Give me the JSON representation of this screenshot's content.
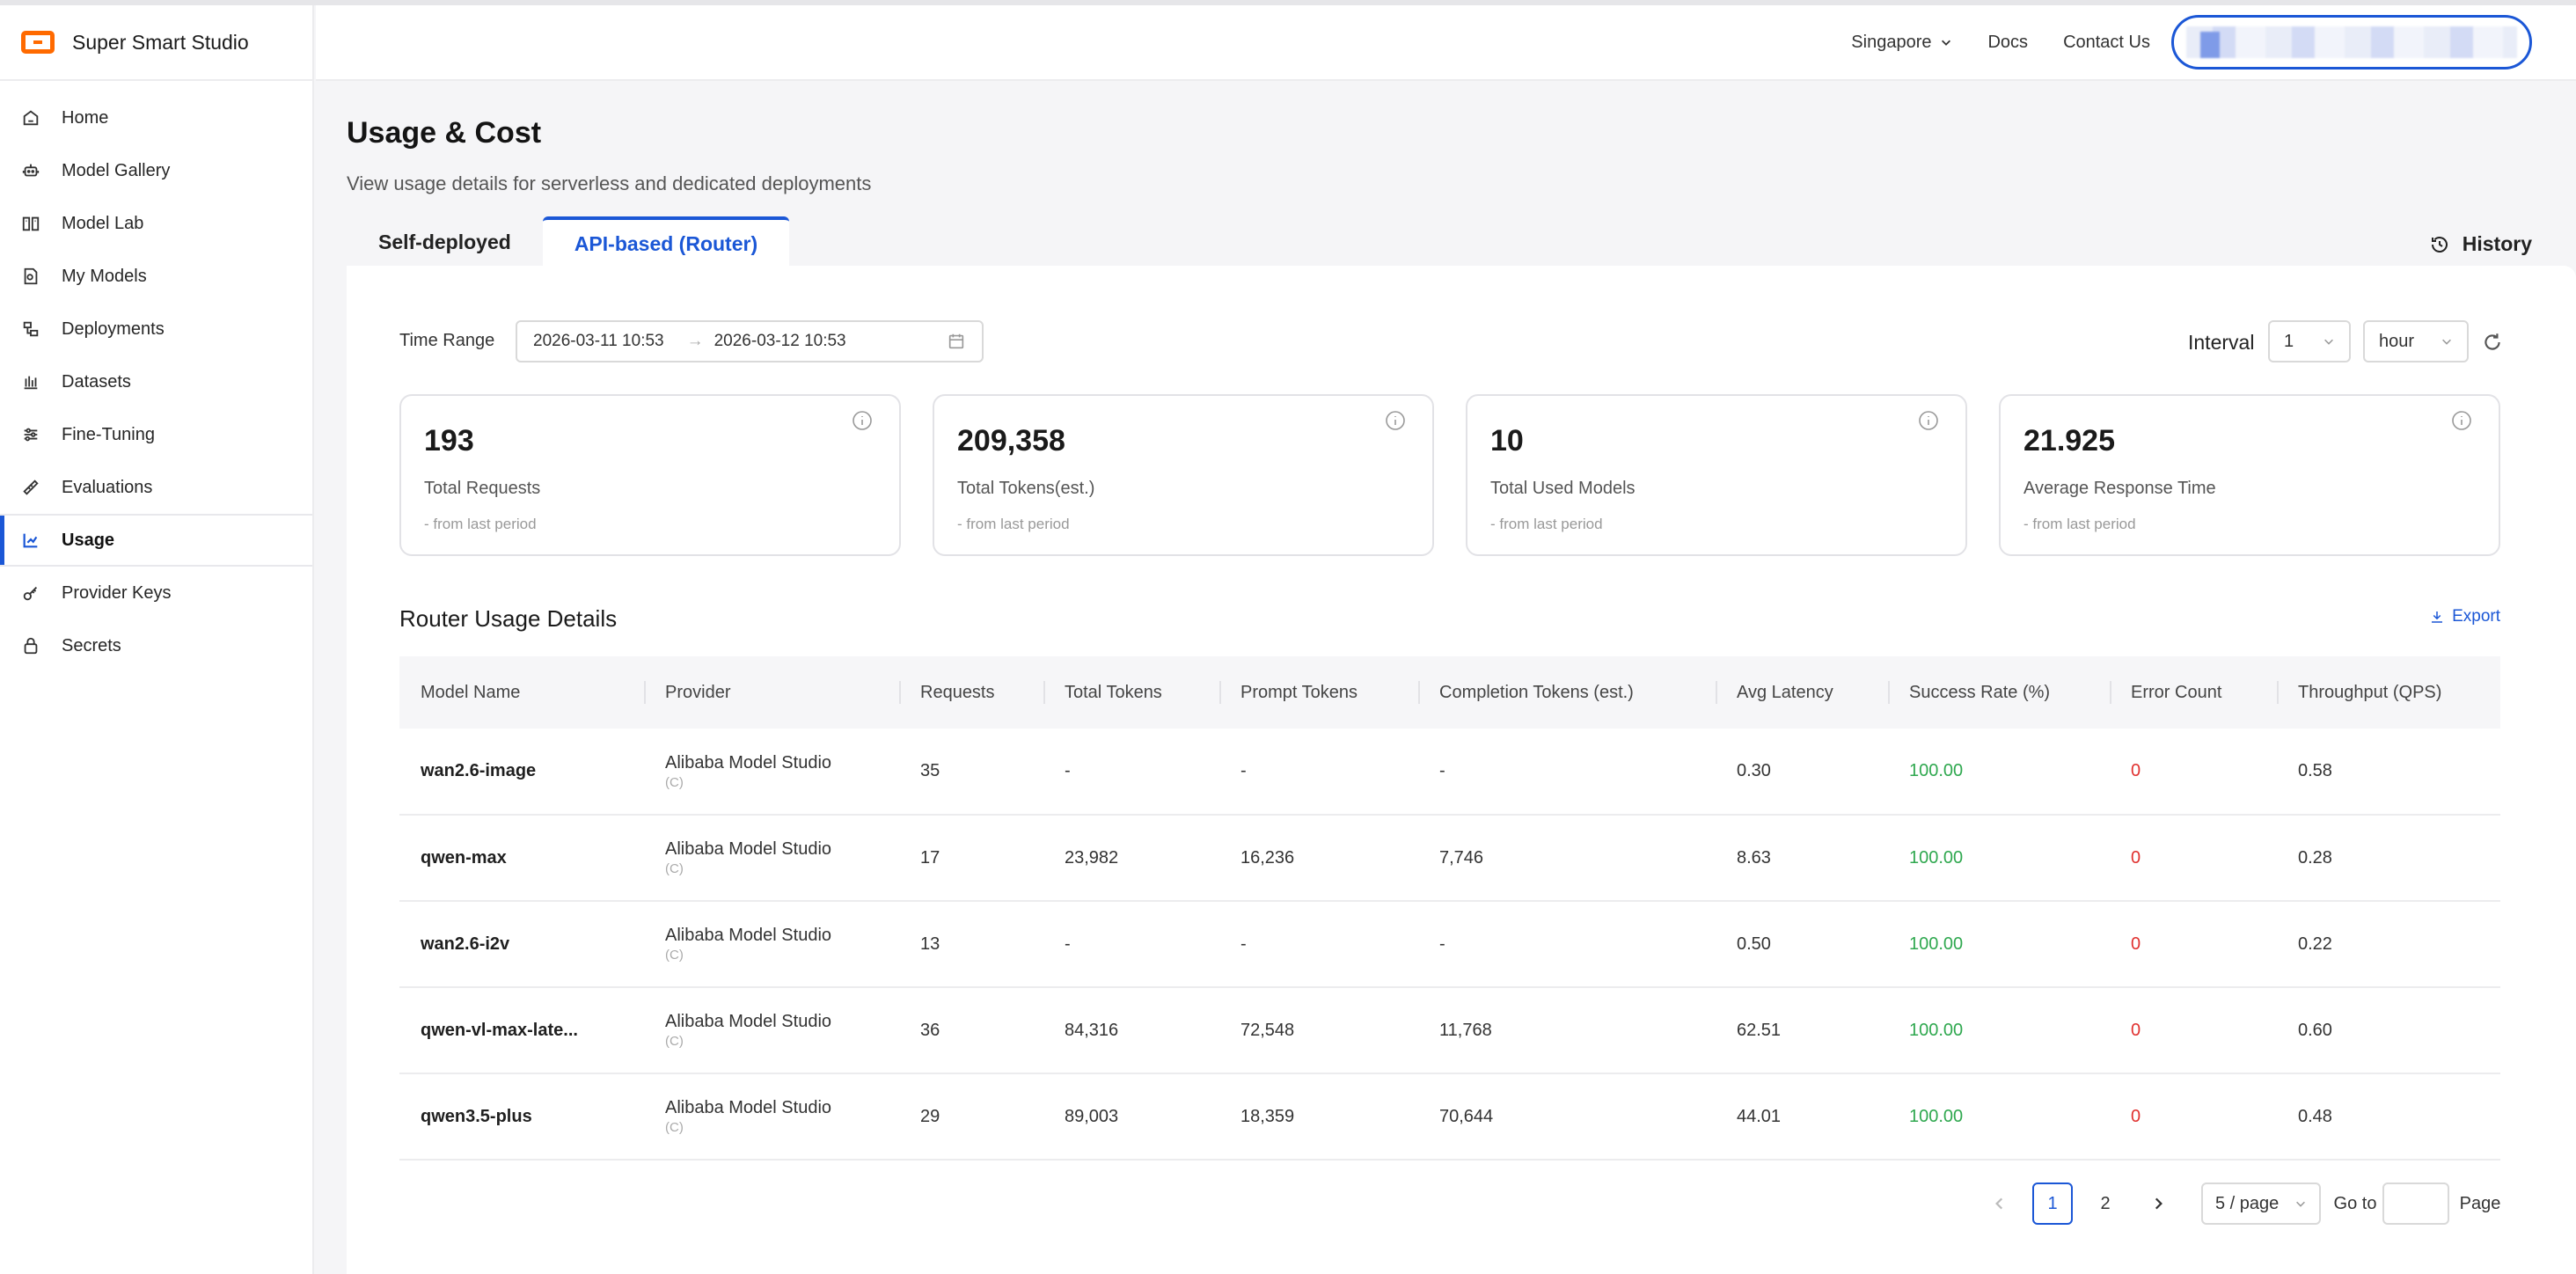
{
  "brand": {
    "name": "Super Smart Studio",
    "logo_color": "#ff6a00"
  },
  "sidebar": {
    "items": [
      {
        "label": "Home",
        "icon": "home-icon"
      },
      {
        "label": "Model Gallery",
        "icon": "robot-icon"
      },
      {
        "label": "Model Lab",
        "icon": "book-icon"
      },
      {
        "label": "My Models",
        "icon": "model-file-icon"
      },
      {
        "label": "Deployments",
        "icon": "deployments-icon"
      },
      {
        "label": "Datasets",
        "icon": "dataset-icon"
      },
      {
        "label": "Fine-Tuning",
        "icon": "sliders-icon"
      },
      {
        "label": "Evaluations",
        "icon": "ruler-icon"
      },
      {
        "label": "Usage",
        "icon": "chart-icon",
        "active": true
      },
      {
        "label": "Provider Keys",
        "icon": "key-icon"
      },
      {
        "label": "Secrets",
        "icon": "lock-icon"
      }
    ]
  },
  "header": {
    "region": "Singapore",
    "docs": "Docs",
    "contact": "Contact Us"
  },
  "page": {
    "title": "Usage & Cost",
    "subtitle": "View usage details for serverless and dedicated deployments"
  },
  "tabs": [
    {
      "label": "Self-deployed",
      "active": false
    },
    {
      "label": "API-based (Router)",
      "active": true
    }
  ],
  "history": {
    "label": "History"
  },
  "filters": {
    "time_range_label": "Time Range",
    "start": "2026-03-11 10:53",
    "end": "2026-03-12 10:53",
    "interval_label": "Interval",
    "interval_value": "1",
    "interval_unit": "hour"
  },
  "stats": [
    {
      "value": "193",
      "label": "Total Requests",
      "sub": "- from last period"
    },
    {
      "value": "209,358",
      "label": "Total Tokens(est.)",
      "sub": "- from last period"
    },
    {
      "value": "10",
      "label": "Total Used Models",
      "sub": "- from last period"
    },
    {
      "value": "21.925",
      "label": "Average Response Time",
      "sub": "- from last period"
    }
  ],
  "details": {
    "title": "Router Usage Details",
    "export": "Export",
    "columns": [
      "Model Name",
      "Provider",
      "Requests",
      "Total Tokens",
      "Prompt Tokens",
      "Completion Tokens (est.)",
      "Avg Latency",
      "Success Rate (%)",
      "Error Count",
      "Throughput (QPS)"
    ],
    "rows": [
      {
        "model": "wan2.6-image",
        "provider": "Alibaba Model Studio",
        "provider_tag": "(C)",
        "requests": "35",
        "total": "-",
        "prompt": "-",
        "completion": "-",
        "latency": "0.30",
        "success": "100.00",
        "errors": "0",
        "qps": "0.58"
      },
      {
        "model": "qwen-max",
        "provider": "Alibaba Model Studio",
        "provider_tag": "(C)",
        "requests": "17",
        "total": "23,982",
        "prompt": "16,236",
        "completion": "7,746",
        "latency": "8.63",
        "success": "100.00",
        "errors": "0",
        "qps": "0.28"
      },
      {
        "model": "wan2.6-i2v",
        "provider": "Alibaba Model Studio",
        "provider_tag": "(C)",
        "requests": "13",
        "total": "-",
        "prompt": "-",
        "completion": "-",
        "latency": "0.50",
        "success": "100.00",
        "errors": "0",
        "qps": "0.22"
      },
      {
        "model": "qwen-vl-max-late...",
        "provider": "Alibaba Model Studio",
        "provider_tag": "(C)",
        "requests": "36",
        "total": "84,316",
        "prompt": "72,548",
        "completion": "11,768",
        "latency": "62.51",
        "success": "100.00",
        "errors": "0",
        "qps": "0.60"
      },
      {
        "model": "qwen3.5-plus",
        "provider": "Alibaba Model Studio",
        "provider_tag": "(C)",
        "requests": "29",
        "total": "89,003",
        "prompt": "18,359",
        "completion": "70,644",
        "latency": "44.01",
        "success": "100.00",
        "errors": "0",
        "qps": "0.48"
      }
    ]
  },
  "pagination": {
    "pages": [
      "1",
      "2"
    ],
    "current": "1",
    "page_size": "5 / page",
    "goto_label": "Go to",
    "page_label": "Page"
  },
  "colors": {
    "accent": "#1b57d6",
    "success": "#2fa84f",
    "error": "#e0312f"
  }
}
